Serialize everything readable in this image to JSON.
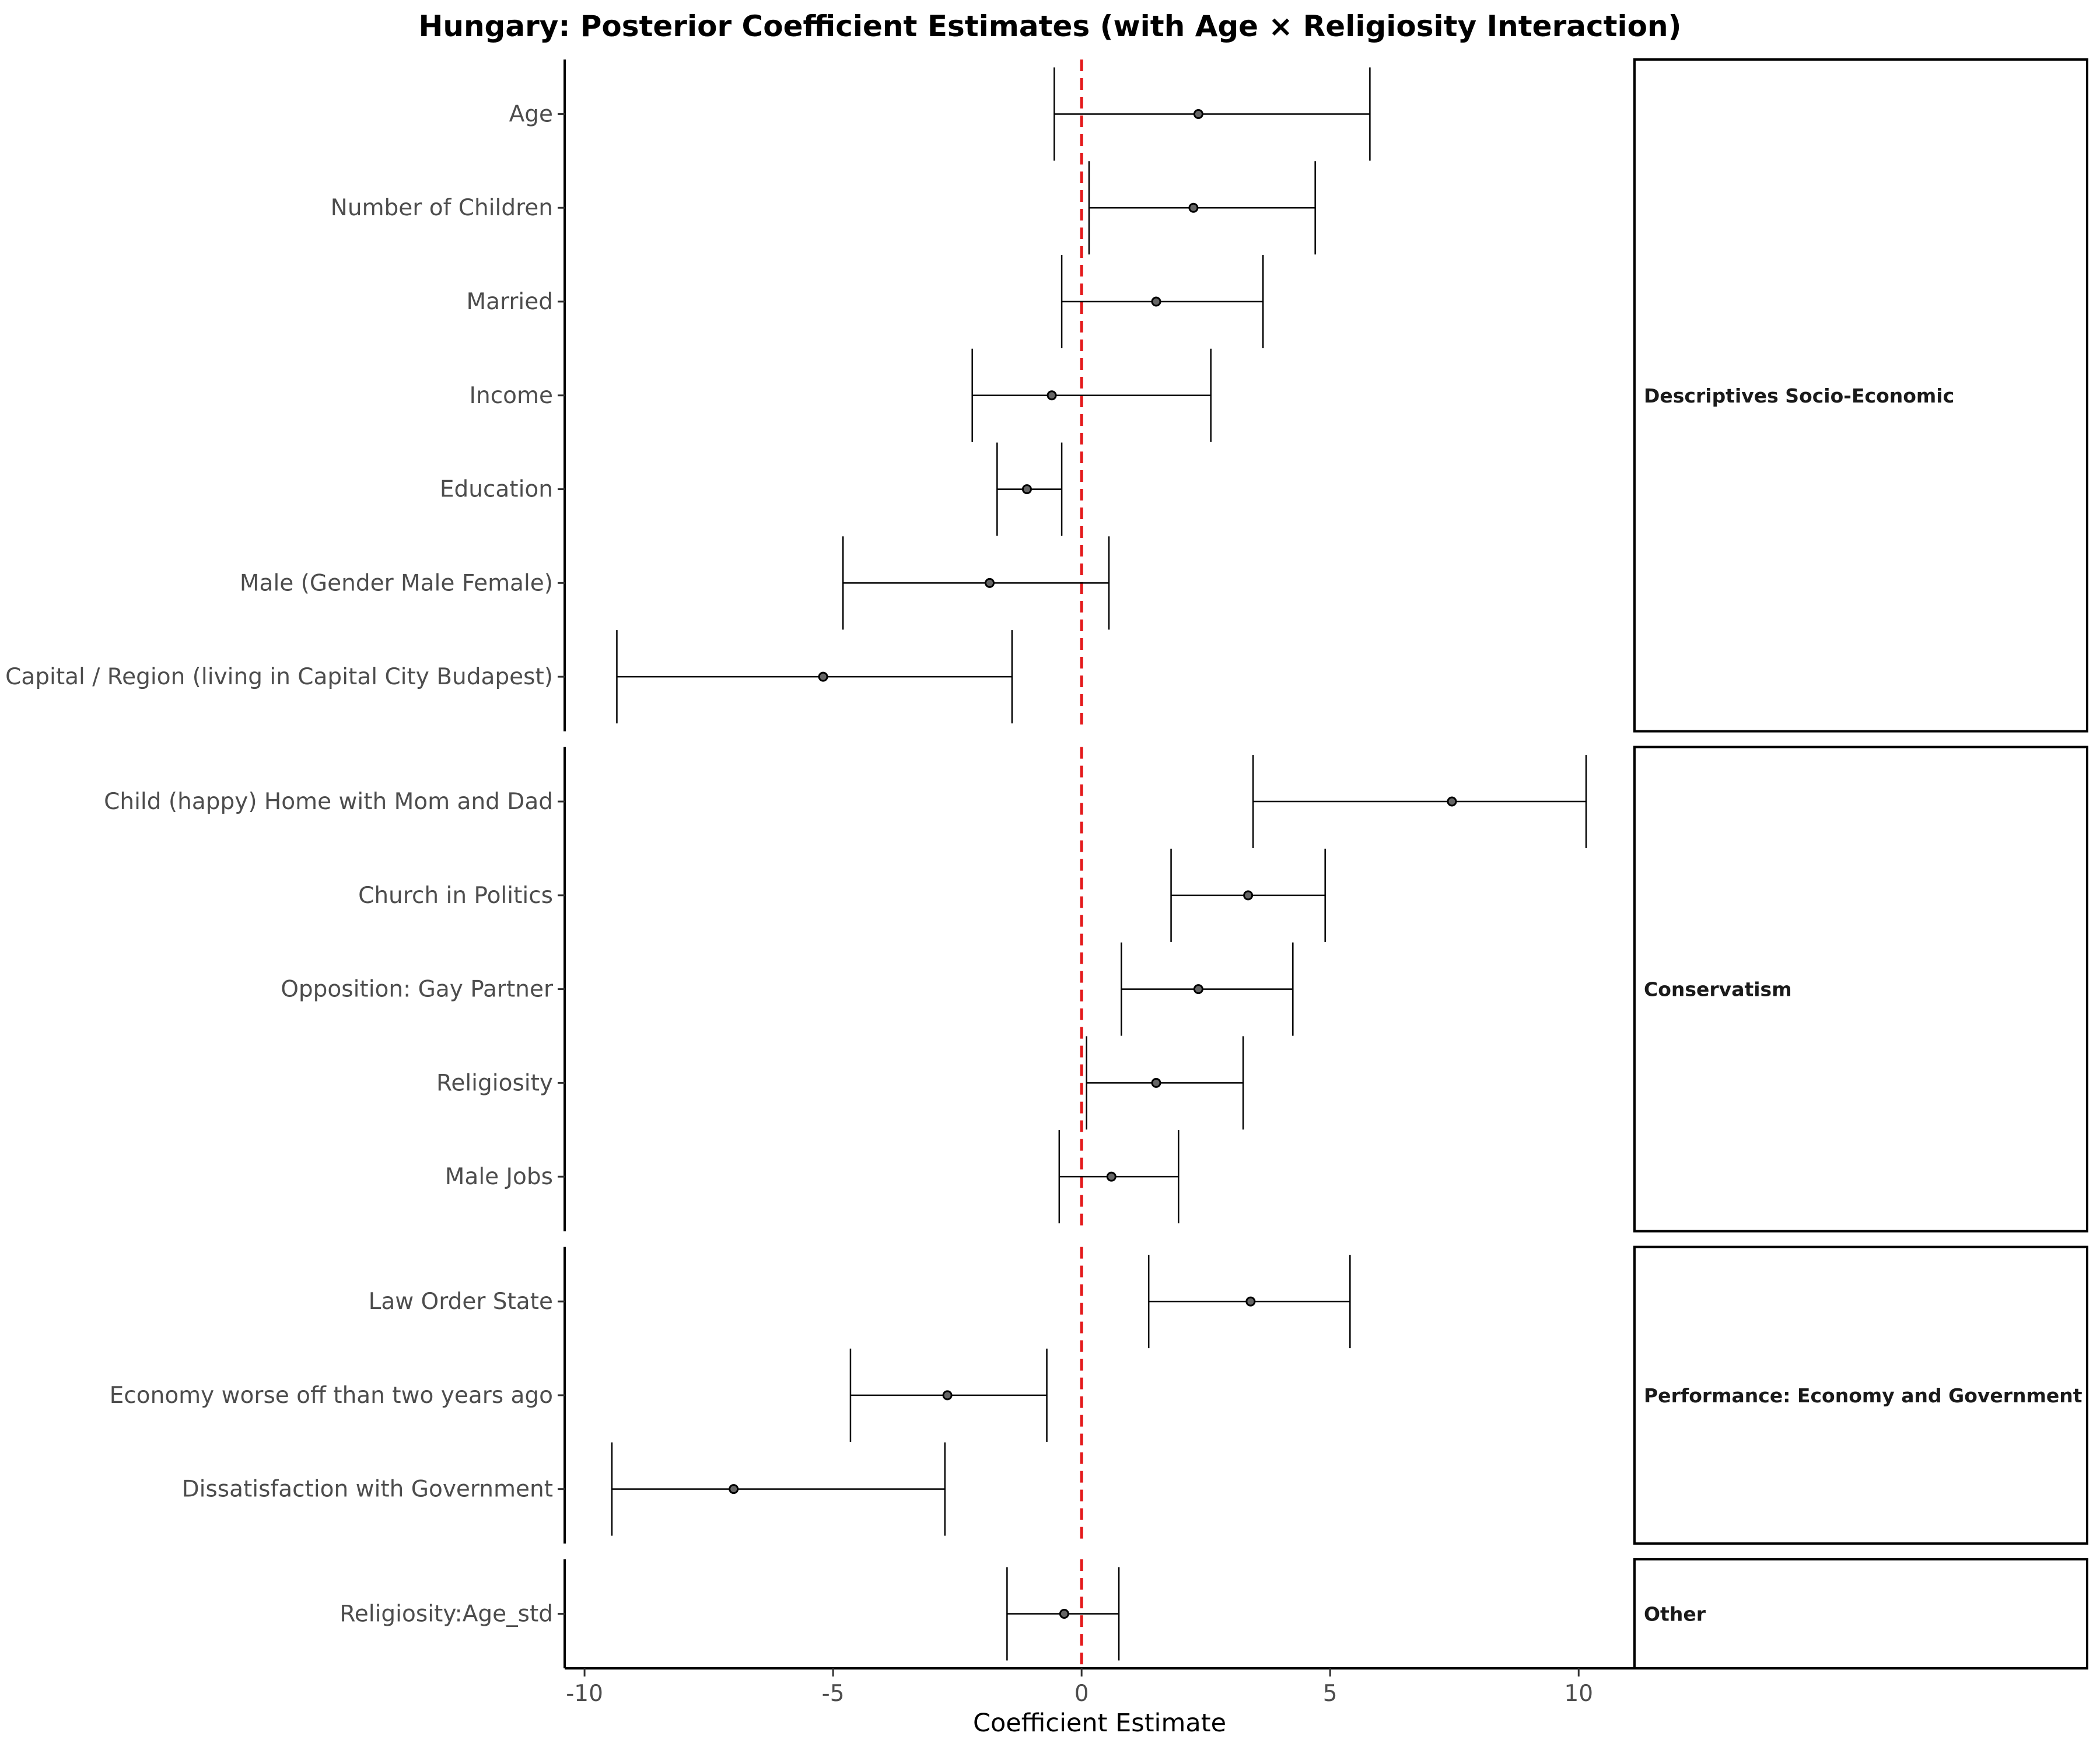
{
  "chart_data": {
    "type": "forest",
    "title": "Hungary: Posterior Coefficient Estimates (with Age × Religiosity Interaction)",
    "xlabel": "Coefficient Estimate",
    "xlim": [
      -10.4,
      11.1
    ],
    "xticks": [
      -10,
      -5,
      0,
      5,
      10
    ],
    "reference_line": 0,
    "reference_line_color": "#e41a1c",
    "groups": [
      {
        "name": "Descriptives Socio-Economic",
        "rows": [
          {
            "label": "Age",
            "estimate": 2.35,
            "lower": -0.55,
            "upper": 5.8
          },
          {
            "label": "Number of Children",
            "estimate": 2.25,
            "lower": 0.15,
            "upper": 4.7
          },
          {
            "label": "Married",
            "estimate": 1.5,
            "lower": -0.4,
            "upper": 3.65
          },
          {
            "label": "Income",
            "estimate": -0.6,
            "lower": -2.2,
            "upper": 2.6
          },
          {
            "label": "Education",
            "estimate": -1.1,
            "lower": -1.7,
            "upper": -0.4
          },
          {
            "label": "Male (Gender Male Female)",
            "estimate": -1.85,
            "lower": -4.8,
            "upper": 0.55
          },
          {
            "label": "Capital / Region (living in Capital City Budapest)",
            "estimate": -5.2,
            "lower": -9.35,
            "upper": -1.4
          }
        ]
      },
      {
        "name": "Conservatism",
        "rows": [
          {
            "label": "Child (happy) Home with Mom and Dad",
            "estimate": 7.45,
            "lower": 3.45,
            "upper": 10.15
          },
          {
            "label": "Church in Politics",
            "estimate": 3.35,
            "lower": 1.8,
            "upper": 4.9
          },
          {
            "label": "Opposition: Gay Partner",
            "estimate": 2.35,
            "lower": 0.8,
            "upper": 4.25
          },
          {
            "label": "Religiosity",
            "estimate": 1.5,
            "lower": 0.1,
            "upper": 3.25
          },
          {
            "label": "Male Jobs",
            "estimate": 0.6,
            "lower": -0.45,
            "upper": 1.95
          }
        ]
      },
      {
        "name": "Performance: Economy and Government",
        "rows": [
          {
            "label": "Law Order State",
            "estimate": 3.4,
            "lower": 1.35,
            "upper": 5.4
          },
          {
            "label": "Economy worse off than two years ago",
            "estimate": -2.7,
            "lower": -4.65,
            "upper": -0.7
          },
          {
            "label": "Dissatisfaction with Government",
            "estimate": -7.0,
            "lower": -9.45,
            "upper": -2.75
          }
        ]
      },
      {
        "name": "Other",
        "rows": [
          {
            "label": "Religiosity:Age_std",
            "estimate": -0.35,
            "lower": -1.5,
            "upper": 0.75
          }
        ]
      }
    ]
  }
}
